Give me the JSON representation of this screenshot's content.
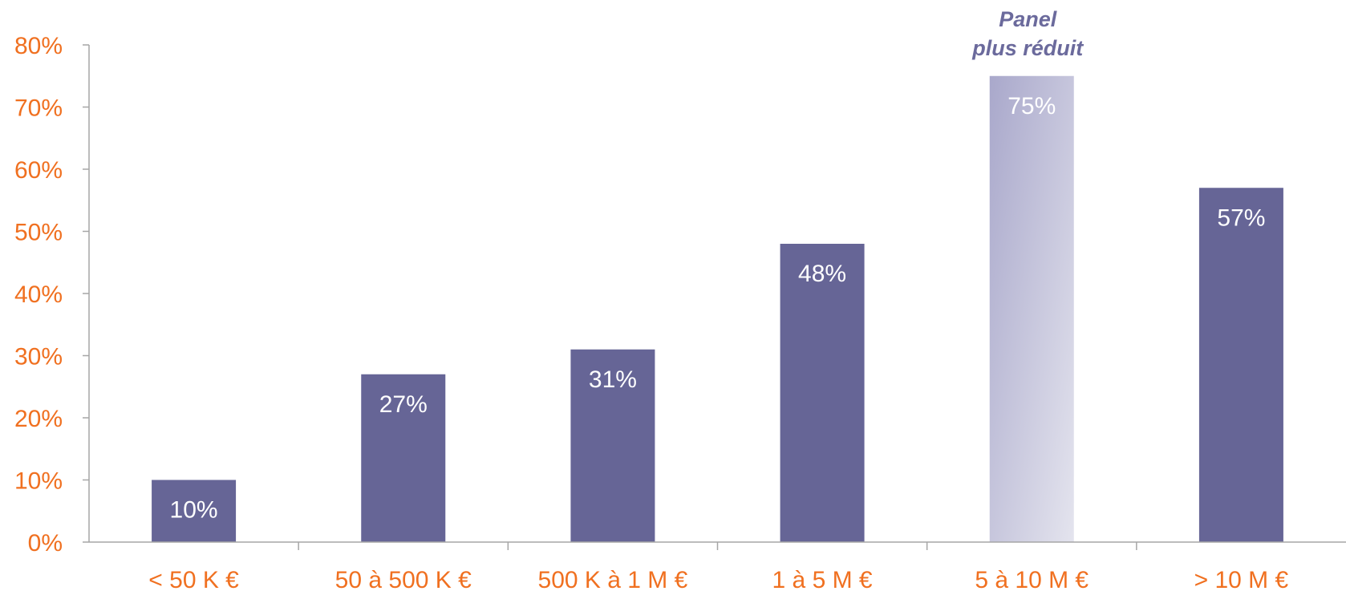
{
  "chart_data": {
    "type": "bar",
    "categories": [
      "< 50 K €",
      "50 à 500 K €",
      "500 K à 1 M €",
      "1 à 5 M €",
      "5 à 10 M €",
      "> 10 M €"
    ],
    "values": [
      10,
      27,
      31,
      48,
      75,
      57
    ],
    "value_labels": [
      "10%",
      "27%",
      "31%",
      "48%",
      "75%",
      "57%"
    ],
    "ylim": [
      0,
      80
    ],
    "yticks": [
      0,
      10,
      20,
      30,
      40,
      50,
      60,
      70,
      80
    ],
    "ytick_labels": [
      "0%",
      "10%",
      "20%",
      "30%",
      "40%",
      "50%",
      "60%",
      "70%",
      "80%"
    ],
    "title": "",
    "xlabel": "",
    "ylabel": "",
    "grid": false,
    "highlight_index": 4,
    "annotation": {
      "category_index": 4,
      "lines": [
        "Panel",
        "plus réduit"
      ]
    },
    "colors": {
      "bar": "#666596",
      "highlight_bar_top": "#a9a8cb",
      "highlight_bar_bottom": "#e4e4ee",
      "tick_text": "#f07020",
      "value_text": "#ffffff",
      "annotation_text": "#6b6a9c",
      "axis": "#a6a6a6"
    }
  }
}
